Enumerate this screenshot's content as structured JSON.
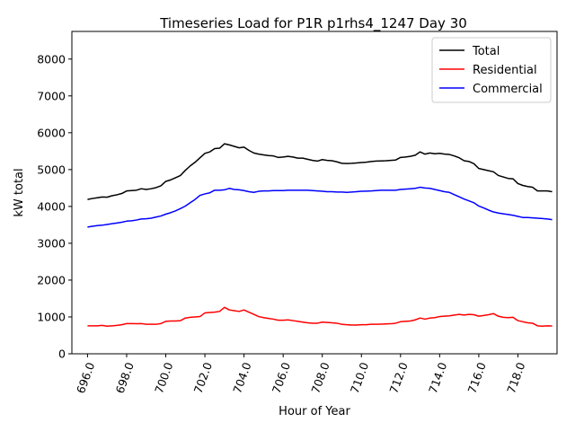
{
  "chart_data": {
    "type": "line",
    "title": "Timeseries Load for P1R p1rhs4_1247  Day 30",
    "xlabel": "Hour of Year",
    "ylabel": "kW total",
    "xlim": [
      695.2,
      720.0
    ],
    "ylim": [
      0,
      8750
    ],
    "xticks": [
      696,
      698,
      700,
      702,
      704,
      706,
      708,
      710,
      712,
      714,
      716,
      718
    ],
    "xtick_labels": [
      "696.0",
      "698.0",
      "700.0",
      "702.0",
      "704.0",
      "706.0",
      "708.0",
      "710.0",
      "712.0",
      "714.0",
      "716.0",
      "718.0"
    ],
    "yticks": [
      0,
      1000,
      2000,
      3000,
      4000,
      5000,
      6000,
      7000,
      8000
    ],
    "ytick_labels": [
      "0",
      "1000",
      "2000",
      "3000",
      "4000",
      "5000",
      "6000",
      "7000",
      "8000"
    ],
    "legend_position": "top-right",
    "x": [
      696.0,
      696.25,
      696.5,
      696.75,
      697.0,
      697.25,
      697.5,
      697.75,
      698.0,
      698.25,
      698.5,
      698.75,
      699.0,
      699.25,
      699.5,
      699.75,
      700.0,
      700.25,
      700.5,
      700.75,
      701.0,
      701.25,
      701.5,
      701.75,
      702.0,
      702.25,
      702.5,
      702.75,
      703.0,
      703.25,
      703.5,
      703.75,
      704.0,
      704.25,
      704.5,
      704.75,
      705.0,
      705.25,
      705.5,
      705.75,
      706.0,
      706.25,
      706.5,
      706.75,
      707.0,
      707.25,
      707.5,
      707.75,
      708.0,
      708.25,
      708.5,
      708.75,
      709.0,
      709.25,
      709.5,
      709.75,
      710.0,
      710.25,
      710.5,
      710.75,
      711.0,
      711.25,
      711.5,
      711.75,
      712.0,
      712.25,
      712.5,
      712.75,
      713.0,
      713.25,
      713.5,
      713.75,
      714.0,
      714.25,
      714.5,
      714.75,
      715.0,
      715.25,
      715.5,
      715.75,
      716.0,
      716.25,
      716.5,
      716.75,
      717.0,
      717.25,
      717.5,
      717.75,
      718.0,
      718.25,
      718.5,
      718.75,
      719.0,
      719.25,
      719.5,
      719.75
    ],
    "series": [
      {
        "name": "Total",
        "color": "#000000",
        "values": [
          4190,
          4215,
          4235,
          4255,
          4250,
          4290,
          4315,
          4350,
          4420,
          4430,
          4440,
          4480,
          4460,
          4480,
          4510,
          4560,
          4680,
          4720,
          4780,
          4840,
          4980,
          5100,
          5200,
          5320,
          5440,
          5480,
          5570,
          5580,
          5700,
          5670,
          5630,
          5590,
          5610,
          5520,
          5450,
          5420,
          5400,
          5380,
          5370,
          5330,
          5340,
          5360,
          5340,
          5310,
          5310,
          5280,
          5250,
          5230,
          5270,
          5250,
          5240,
          5210,
          5170,
          5165,
          5170,
          5180,
          5190,
          5200,
          5220,
          5230,
          5235,
          5240,
          5250,
          5260,
          5330,
          5340,
          5360,
          5390,
          5480,
          5420,
          5450,
          5430,
          5440,
          5420,
          5410,
          5370,
          5320,
          5240,
          5220,
          5160,
          5030,
          5000,
          4970,
          4940,
          4840,
          4800,
          4760,
          4750,
          4620,
          4570,
          4540,
          4520,
          4420,
          4420,
          4420,
          4400
        ]
      },
      {
        "name": "Residential",
        "color": "#ff0000",
        "values": [
          760,
          760,
          760,
          770,
          750,
          760,
          770,
          790,
          820,
          820,
          815,
          820,
          800,
          800,
          800,
          820,
          880,
          890,
          890,
          900,
          970,
          990,
          1000,
          1010,
          1110,
          1120,
          1130,
          1150,
          1260,
          1190,
          1170,
          1150,
          1190,
          1130,
          1070,
          1010,
          980,
          960,
          940,
          910,
          910,
          920,
          900,
          880,
          860,
          840,
          830,
          830,
          860,
          850,
          840,
          830,
          800,
          790,
          780,
          780,
          790,
          790,
          800,
          800,
          805,
          810,
          815,
          830,
          870,
          880,
          890,
          920,
          970,
          940,
          970,
          980,
          1010,
          1020,
          1030,
          1050,
          1070,
          1050,
          1070,
          1060,
          1020,
          1040,
          1060,
          1090,
          1020,
          990,
          980,
          990,
          900,
          870,
          840,
          830,
          760,
          750,
          760,
          755
        ]
      },
      {
        "name": "Commercial",
        "color": "#0000ff",
        "values": [
          3440,
          3460,
          3480,
          3490,
          3510,
          3530,
          3550,
          3570,
          3600,
          3610,
          3630,
          3660,
          3665,
          3680,
          3710,
          3740,
          3790,
          3830,
          3880,
          3940,
          4010,
          4100,
          4190,
          4300,
          4340,
          4370,
          4440,
          4440,
          4450,
          4490,
          4460,
          4450,
          4430,
          4400,
          4380,
          4410,
          4420,
          4420,
          4430,
          4430,
          4430,
          4440,
          4440,
          4440,
          4440,
          4440,
          4430,
          4420,
          4410,
          4400,
          4400,
          4390,
          4390,
          4380,
          4390,
          4400,
          4410,
          4415,
          4420,
          4430,
          4440,
          4440,
          4440,
          4440,
          4460,
          4470,
          4480,
          4490,
          4520,
          4500,
          4490,
          4460,
          4430,
          4400,
          4380,
          4320,
          4260,
          4200,
          4150,
          4100,
          4010,
          3960,
          3900,
          3850,
          3820,
          3800,
          3780,
          3760,
          3730,
          3700,
          3700,
          3690,
          3680,
          3670,
          3660,
          3640
        ]
      }
    ]
  }
}
